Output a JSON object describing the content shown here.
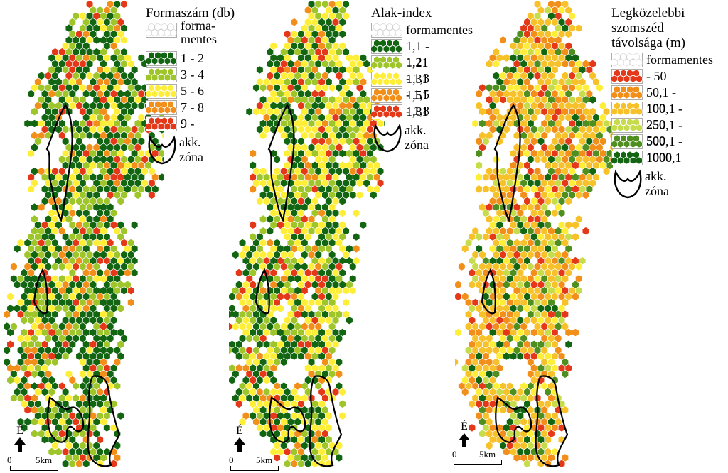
{
  "colors": {
    "empty": "#ffffff",
    "empty_stroke": "#cfcfcf",
    "dark_green": "#126612",
    "mid_green": "#4e8f1f",
    "yellow_green": "#9ec52a",
    "light_green": "#c7dc4a",
    "yellow": "#ffee38",
    "gold": "#f7c12a",
    "orange": "#f28f1a",
    "red": "#e43818",
    "outline": "#000000"
  },
  "panels": [
    {
      "id": "forma",
      "legend": {
        "title": "Formaszám (db)",
        "items": [
          {
            "label": "forma-\nmentes",
            "color": "empty"
          },
          {
            "label": "1 - 2",
            "color": "dark_green"
          },
          {
            "label": "3 - 4",
            "color": "yellow_green"
          },
          {
            "label": "5 - 6",
            "color": "yellow"
          },
          {
            "label": "7 - 8",
            "color": "orange"
          },
          {
            "label": "9 -",
            "color": "red"
          }
        ],
        "zone_label": "akk.\nzóna"
      },
      "palette": [
        "dark_green",
        "dark_green",
        "dark_green",
        "dark_green",
        "yellow_green",
        "yellow_green",
        "yellow",
        "orange",
        "red"
      ],
      "north_label": "É",
      "scale_zero": "0",
      "scale_length": "5km"
    },
    {
      "id": "alak",
      "legend": {
        "title": "Alak-index",
        "items": [
          {
            "label": "formamentes",
            "color": "empty"
          },
          {
            "label": "1,1 - 1,2",
            "color": "dark_green"
          },
          {
            "label": "1,21 - 1,3",
            "color": "yellow_green"
          },
          {
            "label": "1,31 - 1,5",
            "color": "yellow"
          },
          {
            "label": "1,51 - 1,8",
            "color": "orange"
          },
          {
            "label": "1,81 -",
            "color": "red"
          }
        ],
        "zone_label": "akk.\nzóna"
      },
      "palette": [
        "dark_green",
        "dark_green",
        "dark_green",
        "yellow_green",
        "yellow_green",
        "yellow",
        "yellow",
        "yellow",
        "orange",
        "red"
      ],
      "north_label": "É",
      "scale_zero": "0",
      "scale_length": "5km"
    },
    {
      "id": "szomszed",
      "legend": {
        "title": "Legközelebbi\nszomszéd\ntávolsága (m)",
        "items": [
          {
            "label": "formamentes",
            "color": "empty"
          },
          {
            "label": " - 50",
            "color": "red"
          },
          {
            "label": "50,1 - 100",
            "color": "orange"
          },
          {
            "label": "100,1 - 250",
            "color": "gold"
          },
          {
            "label": "250,1 - 500",
            "color": "light_green"
          },
          {
            "label": "500,1 - 1000",
            "color": "mid_green"
          },
          {
            "label": "1000,1 -",
            "color": "dark_green"
          }
        ],
        "zone_label": "akk.\nzóna"
      },
      "palette": [
        "orange",
        "orange",
        "gold",
        "gold",
        "gold",
        "gold",
        "light_green",
        "red",
        "yellow",
        "mid_green",
        "dark_green"
      ],
      "north_label": "É",
      "scale_zero": "0",
      "scale_length": "5km"
    }
  ]
}
